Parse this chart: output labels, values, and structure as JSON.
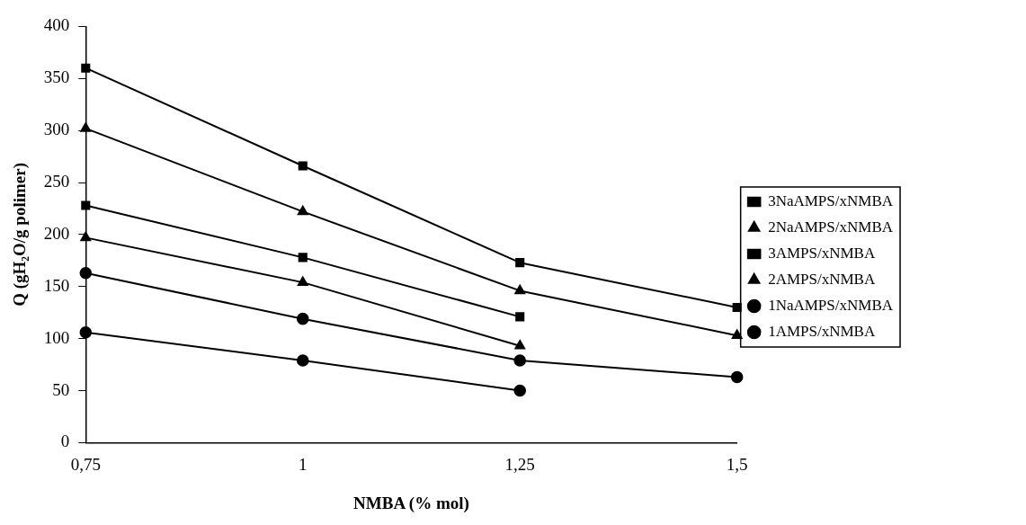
{
  "chart_data": {
    "type": "line",
    "xlabel": "NMBA (% mol)",
    "ylabel": "Q (gH₂O/g polimer)",
    "categories": [
      "0,75",
      "1",
      "1,25",
      "1,5"
    ],
    "series": [
      {
        "name": "3NaAMPS/xNMBA",
        "color": "#000000",
        "marker": "square",
        "values": [
          360,
          266,
          173,
          130
        ]
      },
      {
        "name": "2NaAMPS/xNMBA",
        "color": "#000000",
        "marker": "triangle",
        "values": [
          302,
          222,
          146,
          103
        ]
      },
      {
        "name": "3AMPS/xNMBA",
        "color": "#000000",
        "marker": "square",
        "values": [
          228,
          178,
          121,
          null
        ]
      },
      {
        "name": "2AMPS/xNMBA",
        "color": "#000000",
        "marker": "triangle",
        "values": [
          197,
          154,
          93,
          null
        ]
      },
      {
        "name": "1NaAMPS/xNMBA",
        "color": "#000000",
        "marker": "circle",
        "values": [
          163,
          119,
          79,
          63
        ]
      },
      {
        "name": "1AMPS/xNMBA",
        "color": "#000000",
        "marker": "circle",
        "values": [
          106,
          79,
          50,
          null
        ]
      }
    ],
    "ylim": [
      0,
      400
    ],
    "yticks": [
      0,
      50,
      100,
      150,
      200,
      250,
      300,
      350,
      400
    ],
    "grid": false,
    "legend": "right",
    "line_style": "solid"
  }
}
